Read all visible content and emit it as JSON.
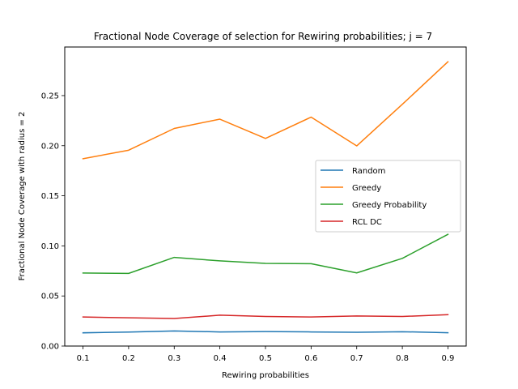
{
  "chart_data": {
    "type": "line",
    "title": "Fractional Node Coverage of selection for Rewiring probabilities; j = 7",
    "xlabel": "Rewiring probabilities",
    "ylabel": "Fractional Node Coverage with radius = 2",
    "x": [
      0.1,
      0.2,
      0.3,
      0.4,
      0.5,
      0.6,
      0.7,
      0.8,
      0.9
    ],
    "x_ticks": [
      "0.1",
      "0.2",
      "0.3",
      "0.4",
      "0.5",
      "0.6",
      "0.7",
      "0.8",
      "0.9"
    ],
    "y_ticks": [
      "0.00",
      "0.05",
      "0.10",
      "0.15",
      "0.20",
      "0.25"
    ],
    "xlim": [
      0.06,
      0.94
    ],
    "ylim": [
      0.0,
      0.2985
    ],
    "grid": false,
    "legend_position": "center-right",
    "series": [
      {
        "name": "Random",
        "color": "#1f77b4",
        "values": [
          0.0132,
          0.014,
          0.0151,
          0.0141,
          0.0145,
          0.0141,
          0.0138,
          0.0143,
          0.0133
        ]
      },
      {
        "name": "Greedy",
        "color": "#ff7f0e",
        "values": [
          0.187,
          0.1955,
          0.2172,
          0.2265,
          0.2072,
          0.2285,
          0.1998,
          0.2413,
          0.2838
        ]
      },
      {
        "name": "Greedy Probability",
        "color": "#2ca02c",
        "values": [
          0.0729,
          0.0725,
          0.0885,
          0.085,
          0.0825,
          0.0822,
          0.073,
          0.0875,
          0.1115
        ]
      },
      {
        "name": "RCL DC",
        "color": "#d62728",
        "values": [
          0.029,
          0.0282,
          0.0275,
          0.0308,
          0.0295,
          0.029,
          0.03,
          0.0295,
          0.0313
        ]
      }
    ]
  }
}
